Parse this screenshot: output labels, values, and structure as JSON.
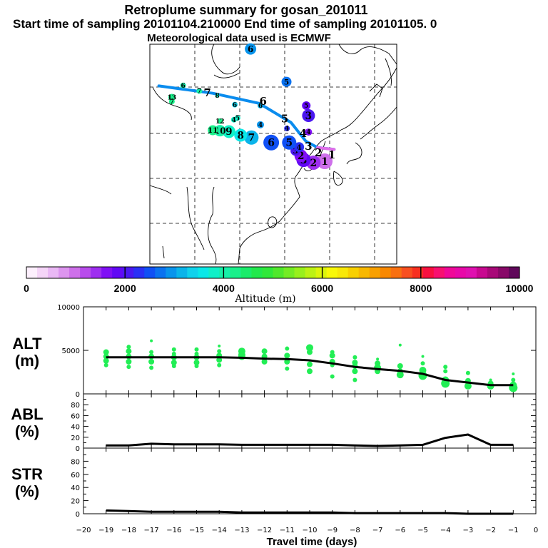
{
  "titles": {
    "line1": "Retroplume summary for gosan_201011",
    "line2": "Start time of sampling 20101104.210000     End time of sampling 20101105.     0",
    "line3": "Meteorological data used is ECMWF"
  },
  "colorbar": {
    "label": "Altitude (m)",
    "tick_labels": [
      "0",
      "2000",
      "4000",
      "6000",
      "8000",
      "10000"
    ],
    "colors": [
      "#fdf0fd",
      "#f5d5f8",
      "#eab8f5",
      "#dd95ef",
      "#ce70ea",
      "#b84cec",
      "#9e2ef0",
      "#8010f5",
      "#6208f5",
      "#4a18f0",
      "#2a30f5",
      "#1050f5",
      "#0a72f0",
      "#0894ec",
      "#0ab4ea",
      "#10d2ec",
      "#0ae8e8",
      "#10f0c8",
      "#16f0a8",
      "#1af08a",
      "#1aec6a",
      "#22e84c",
      "#30e83a",
      "#50e82c",
      "#74ec24",
      "#98f01c",
      "#bcf214",
      "#dcf50c",
      "#f8f808",
      "#f8e808",
      "#f8d000",
      "#f8b800",
      "#f8a000",
      "#f88800",
      "#f87010",
      "#f85020",
      "#f83020",
      "#f81040",
      "#f81070",
      "#f00898",
      "#e808a8",
      "#e010b0",
      "#c80890",
      "#a80878",
      "#880868",
      "#60085a"
    ]
  },
  "map": {
    "plume_points": [
      {
        "label": "1",
        "lon": 128.9,
        "lat": 33.9,
        "alt": 1000,
        "size": 11
      },
      {
        "label": "2",
        "lon": 126.4,
        "lat": 33.6,
        "alt": 1400,
        "size": 10
      },
      {
        "label": "3",
        "lon": 124.2,
        "lat": 34.2,
        "alt": 1800,
        "size": 10
      },
      {
        "label": "2",
        "lon": 123.6,
        "lat": 35.1,
        "alt": 1700,
        "size": 9
      },
      {
        "label": "3",
        "lon": 122.4,
        "lat": 36.2,
        "alt": 2000,
        "size": 7
      },
      {
        "label": "4",
        "lon": 123.2,
        "lat": 37.0,
        "alt": 2200,
        "size": 7
      },
      {
        "label": "5",
        "lon": 121.0,
        "lat": 38.0,
        "alt": 2400,
        "size": 10
      },
      {
        "label": "6",
        "lon": 117.0,
        "lat": 38.0,
        "alt": 2600,
        "size": 11
      },
      {
        "label": "7",
        "lon": 112.6,
        "lat": 39.1,
        "alt": 3200,
        "size": 10
      },
      {
        "label": "8",
        "lon": 110.2,
        "lat": 39.6,
        "alt": 3600,
        "size": 9
      },
      {
        "label": "9",
        "lon": 107.6,
        "lat": 40.4,
        "alt": 3900,
        "size": 9
      },
      {
        "label": "10",
        "lon": 105.6,
        "lat": 40.6,
        "alt": 4100,
        "size": 8
      },
      {
        "label": "11",
        "lon": 104.0,
        "lat": 40.7,
        "alt": 4200,
        "size": 7
      },
      {
        "label": "4",
        "lon": 125.3,
        "lat": 40.3,
        "alt": 1600,
        "size": 5
      },
      {
        "label": "4",
        "lon": 120.5,
        "lat": 41.1,
        "alt": 2300,
        "size": 4
      },
      {
        "label": "4",
        "lon": 114.6,
        "lat": 41.9,
        "alt": 3000,
        "size": 5
      },
      {
        "label": "3",
        "lon": 125.3,
        "lat": 43.9,
        "alt": 2100,
        "size": 9
      },
      {
        "label": "5",
        "lon": 124.8,
        "lat": 46.1,
        "alt": 1800,
        "size": 6
      },
      {
        "label": "6",
        "lon": 114.6,
        "lat": 46.1,
        "alt": 3100,
        "size": 4
      },
      {
        "label": "5",
        "lon": 109.5,
        "lat": 43.4,
        "alt": 3800,
        "size": 4
      },
      {
        "label": "4",
        "lon": 108.7,
        "lat": 43.0,
        "alt": 3900,
        "size": 4
      },
      {
        "label": "12",
        "lon": 105.6,
        "lat": 42.7,
        "alt": 4200,
        "size": 4
      },
      {
        "label": "6",
        "lon": 108.9,
        "lat": 46.3,
        "alt": 3300,
        "size": 4
      },
      {
        "label": "8",
        "lon": 105.0,
        "lat": 48.3,
        "alt": 3900,
        "size": 3
      },
      {
        "label": "7",
        "lon": 101.0,
        "lat": 49.3,
        "alt": 4000,
        "size": 4
      },
      {
        "label": "6",
        "lon": 97.4,
        "lat": 50.5,
        "alt": 4000,
        "size": 4
      },
      {
        "label": "13",
        "lon": 94.9,
        "lat": 47.9,
        "alt": 4200,
        "size": 5
      },
      {
        "label": "7",
        "lon": 94.9,
        "lat": 47.0,
        "alt": 4200,
        "size": 4
      },
      {
        "label": "5",
        "lon": 120.4,
        "lat": 51.3,
        "alt": 2700,
        "size": 7
      },
      {
        "label": "6",
        "lon": 112.4,
        "lat": 58.5,
        "alt": 3000,
        "size": 8
      }
    ],
    "mean_path": {
      "lon": [
        92,
        104,
        114.3,
        121.4,
        124.7,
        127.3,
        131
      ],
      "lat": [
        50.4,
        48.8,
        46.6,
        42.4,
        38.3,
        36.9,
        36.5
      ]
    },
    "mean_labels": [
      {
        "label": "7",
        "lon": 102.8,
        "lat": 48.9
      },
      {
        "label": "6",
        "lon": 115.2,
        "lat": 47.0
      },
      {
        "label": "5",
        "lon": 120.0,
        "lat": 43.2
      },
      {
        "label": "4",
        "lon": 124.1,
        "lat": 40.0
      },
      {
        "label": "3",
        "lon": 125.3,
        "lat": 37.2
      },
      {
        "label": "2",
        "lon": 127.5,
        "lat": 35.8
      },
      {
        "label": "1",
        "lon": 130.5,
        "lat": 35.3
      }
    ]
  },
  "chart_data": {
    "type": "line",
    "xlabel": "Travel time (days)",
    "x_tick_labels": [
      "−20",
      "−19",
      "−18",
      "−17",
      "−16",
      "−15",
      "−14",
      "−13",
      "−12",
      "−11",
      "−10",
      "−9",
      "−8",
      "−7",
      "−6",
      "−5",
      "−4",
      "−3",
      "−2",
      "−1",
      "0"
    ],
    "xlim": [
      -20,
      0
    ],
    "x": [
      -19,
      -18,
      -17,
      -16,
      -15,
      -14,
      -13,
      -12,
      -11,
      -10,
      -9,
      -8,
      -7,
      -6,
      -5,
      -4,
      -3,
      -2,
      -1
    ],
    "panels": [
      {
        "name": "ALT",
        "title": "ALT",
        "unit": "(m)",
        "ylim": [
          0,
          10000
        ],
        "y_tick_labels": [
          "0",
          "5000",
          "10000"
        ],
        "y_ticks": [
          0,
          5000,
          10000
        ],
        "minor_ticks": [],
        "mean": [
          4200,
          4200,
          4200,
          4200,
          4200,
          4200,
          4150,
          4050,
          4000,
          3850,
          3500,
          3100,
          2850,
          2650,
          2300,
          1600,
          1300,
          1000,
          1000
        ],
        "scatter": [
          {
            "x": -19,
            "y": [
              4800,
              4300,
              3800,
              3300
            ],
            "s": [
              4,
              4,
              4,
              3
            ]
          },
          {
            "x": -18,
            "y": [
              5400,
              4900,
              4300,
              3700,
              3100
            ],
            "s": [
              3,
              4,
              4,
              4,
              3
            ]
          },
          {
            "x": -17,
            "y": [
              6100,
              4800,
              4300,
              3700,
              3000
            ],
            "s": [
              2,
              3,
              4,
              4,
              3
            ]
          },
          {
            "x": -16,
            "y": [
              5100,
              4600,
              4200,
              3600,
              3200
            ],
            "s": [
              3,
              3,
              4,
              4,
              3
            ]
          },
          {
            "x": -15,
            "y": [
              5100,
              4600,
              4200,
              3600,
              3200
            ],
            "s": [
              3,
              3,
              4,
              4,
              3
            ]
          },
          {
            "x": -14,
            "y": [
              5500,
              4900,
              4400,
              3900,
              3300
            ],
            "s": [
              2,
              3,
              4,
              4,
              3
            ]
          },
          {
            "x": -13,
            "y": [
              4900,
              4500,
              4300
            ],
            "s": [
              5,
              5,
              5
            ]
          },
          {
            "x": -12,
            "y": [
              4900,
              4300,
              3700
            ],
            "s": [
              4,
              4,
              4
            ]
          },
          {
            "x": -11,
            "y": [
              5200,
              4400,
              3700,
              2900
            ],
            "s": [
              3,
              4,
              4,
              3
            ]
          },
          {
            "x": -10,
            "y": [
              5300,
              4800,
              3400,
              2600
            ],
            "s": [
              5,
              4,
              4,
              4
            ]
          },
          {
            "x": -9,
            "y": [
              4800,
              4400,
              3700,
              3300,
              2000
            ],
            "s": [
              3,
              4,
              4,
              3,
              3
            ]
          },
          {
            "x": -8,
            "y": [
              4200,
              3600,
              3200,
              2600,
              1600
            ],
            "s": [
              3,
              4,
              4,
              4,
              3
            ]
          },
          {
            "x": -7,
            "y": [
              4000,
              3500,
              3000,
              2600
            ],
            "s": [
              2,
              4,
              5,
              4
            ]
          },
          {
            "x": -6,
            "y": [
              5600,
              3200,
              2600,
              2200
            ],
            "s": [
              2,
              4,
              4,
              5
            ]
          },
          {
            "x": -5,
            "y": [
              4300,
              3500,
              2700,
              2100
            ],
            "s": [
              2,
              3,
              5,
              6
            ]
          },
          {
            "x": -4,
            "y": [
              3100,
              2600,
              1600,
              1200
            ],
            "s": [
              3,
              3,
              5,
              6
            ]
          },
          {
            "x": -3,
            "y": [
              2400,
              1500,
              900
            ],
            "s": [
              3,
              4,
              5
            ]
          },
          {
            "x": -2,
            "y": [
              1600,
              1200,
              900
            ],
            "s": [
              2,
              4,
              5
            ]
          },
          {
            "x": -1,
            "y": [
              2300,
              1600,
              1000,
              700
            ],
            "s": [
              2,
              3,
              5,
              6
            ]
          }
        ]
      },
      {
        "name": "ABL",
        "title": "ABL",
        "unit": "(%)",
        "ylim": [
          0,
          100
        ],
        "y_tick_labels": [
          "0",
          "20",
          "40",
          "60",
          "80"
        ],
        "y_ticks": [
          0,
          20,
          40,
          60,
          80
        ],
        "minor_ticks": [
          10,
          30,
          50,
          70,
          90
        ],
        "mean": [
          5,
          5,
          8,
          7,
          7,
          7,
          6,
          6,
          6,
          6,
          6,
          5,
          4,
          5,
          6,
          19,
          25,
          6,
          6
        ]
      },
      {
        "name": "STR",
        "title": "STR",
        "unit": "(%)",
        "ylim": [
          0,
          100
        ],
        "y_tick_labels": [
          "0",
          "20",
          "40",
          "60",
          "80"
        ],
        "y_ticks": [
          0,
          20,
          40,
          60,
          80
        ],
        "minor_ticks": [
          10,
          30,
          50,
          70,
          90
        ],
        "mean": [
          5,
          4,
          3,
          3,
          3,
          3,
          2,
          2,
          2,
          2,
          2,
          1,
          1,
          1,
          1,
          1,
          0,
          0,
          0
        ]
      }
    ]
  }
}
